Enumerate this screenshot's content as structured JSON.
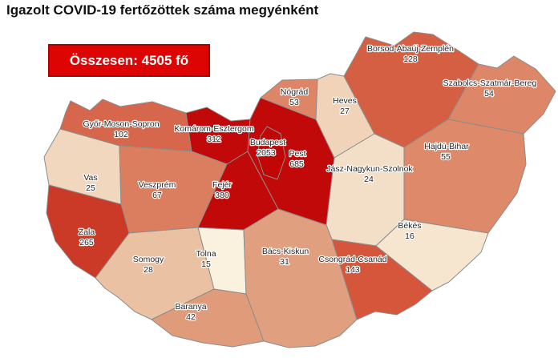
{
  "title": "Igazolt COVID-19 fertőzöttek száma megyénként",
  "total_badge": {
    "label": "Összesen: 4505 fő",
    "bg_color": "#dd0404",
    "border_color": "#b00000",
    "text_color": "#ffffff"
  },
  "map": {
    "country": "Hungary",
    "border_color": "#8c8c8c",
    "label_color": "#262626",
    "label_halo": "#ffffff"
  },
  "chart_data": {
    "type": "heatmap",
    "subtype": "choropleth-map",
    "title": "Igazolt COVID-19 fertőzöttek száma megyénként",
    "total_label": "Összesen: 4505 fő",
    "total": 4505,
    "unit": "fő",
    "color_scale_hint": "light cream (low) to dark red (high)",
    "regions": [
      {
        "id": "gyms",
        "name": "Győr-Moson-Sopron",
        "value": 102,
        "color": "#d7674c"
      },
      {
        "id": "komarom",
        "name": "Komárom-Esztergom",
        "value": 312,
        "color": "#c20909"
      },
      {
        "id": "vas",
        "name": "Vas",
        "value": 25,
        "color": "#f1d7bd"
      },
      {
        "id": "veszprem",
        "name": "Veszprém",
        "value": 67,
        "color": "#db7e60"
      },
      {
        "id": "zala",
        "name": "Zala",
        "value": 265,
        "color": "#cb3927"
      },
      {
        "id": "somogy",
        "name": "Somogy",
        "value": 28,
        "color": "#eac2a3"
      },
      {
        "id": "tolna",
        "name": "Tolna",
        "value": 15,
        "color": "#faf1df"
      },
      {
        "id": "baranya",
        "name": "Baranya",
        "value": 42,
        "color": "#e09b7a"
      },
      {
        "id": "fejer",
        "name": "Fejér",
        "value": 380,
        "color": "#c20909"
      },
      {
        "id": "pest",
        "name": "Pest",
        "value": 685,
        "color": "#c20909"
      },
      {
        "id": "budapest",
        "name": "Budapest",
        "value": 2053,
        "color": "#c10606"
      },
      {
        "id": "nograd",
        "name": "Nógrád",
        "value": 53,
        "color": "#dd8566"
      },
      {
        "id": "heves",
        "name": "Heves",
        "value": 27,
        "color": "#f0d3b9"
      },
      {
        "id": "borsod",
        "name": "Borsod-Abaúj-Zemplén",
        "value": 128,
        "color": "#d55f43"
      },
      {
        "id": "szabolcs",
        "name": "Szabolcs-Szatmár-Bereg",
        "value": 54,
        "color": "#de8768"
      },
      {
        "id": "hajdu",
        "name": "Hajdú-Bihar",
        "value": 55,
        "color": "#de8969"
      },
      {
        "id": "jasz",
        "name": "Jász-Nagykun-Szolnok",
        "value": 24,
        "color": "#f3dec7"
      },
      {
        "id": "bekes",
        "name": "Békés",
        "value": 16,
        "color": "#f6e5cf"
      },
      {
        "id": "csongrad",
        "name": "Csongrád-Csanád",
        "value": 143,
        "color": "#d5563b"
      },
      {
        "id": "bacs",
        "name": "Bács-Kiskun",
        "value": 31,
        "color": "#e09f7e"
      }
    ]
  }
}
